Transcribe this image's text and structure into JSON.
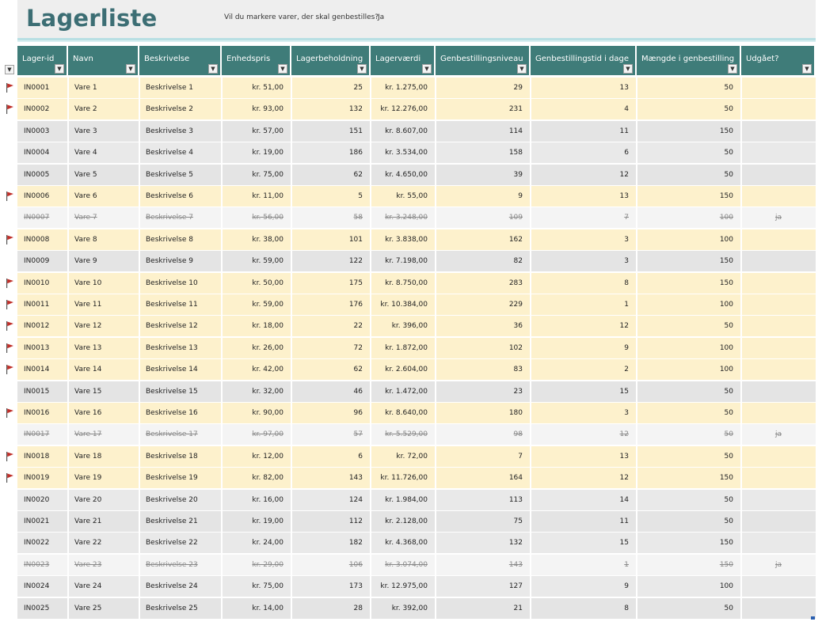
{
  "title": "Lagerliste",
  "question": "Vil du markere varer, der skal genbestilles?",
  "answer": "Ja",
  "colors": {
    "header_bg": "#3f7c79",
    "reorder_bg": "#fdf1cc",
    "flag": "#c0302a",
    "title": "#3c6e74"
  },
  "columns": [
    "Lager-id",
    "Navn",
    "Beskrivelse",
    "Enhedspris",
    "Lagerbeholdning",
    "Lagerværdi",
    "Genbestillingsniveau",
    "Genbestillingstid i dage",
    "Mængde i genbestilling",
    "Udgået?"
  ],
  "filter_icon": "dropdown-arrow-icon",
  "rows": [
    {
      "id": "IN0001",
      "name": "Vare 1",
      "desc": "Beskrivelse 1",
      "price": "kr. 51,00",
      "stock": "25",
      "value": "kr. 1.275,00",
      "level": "29",
      "days": "13",
      "qty": "50",
      "disc": "",
      "flag": true,
      "status": "reorder"
    },
    {
      "id": "IN0002",
      "name": "Vare 2",
      "desc": "Beskrivelse 2",
      "price": "kr. 93,00",
      "stock": "132",
      "value": "kr. 12.276,00",
      "level": "231",
      "days": "4",
      "qty": "50",
      "disc": "",
      "flag": true,
      "status": "reorder"
    },
    {
      "id": "IN0003",
      "name": "Vare 3",
      "desc": "Beskrivelse 3",
      "price": "kr. 57,00",
      "stock": "151",
      "value": "kr. 8.607,00",
      "level": "114",
      "days": "11",
      "qty": "150",
      "disc": "",
      "flag": false,
      "status": "normal"
    },
    {
      "id": "IN0004",
      "name": "Vare 4",
      "desc": "Beskrivelse 4",
      "price": "kr. 19,00",
      "stock": "186",
      "value": "kr. 3.534,00",
      "level": "158",
      "days": "6",
      "qty": "50",
      "disc": "",
      "flag": false,
      "status": "normal"
    },
    {
      "id": "IN0005",
      "name": "Vare 5",
      "desc": "Beskrivelse 5",
      "price": "kr. 75,00",
      "stock": "62",
      "value": "kr. 4.650,00",
      "level": "39",
      "days": "12",
      "qty": "50",
      "disc": "",
      "flag": false,
      "status": "normal"
    },
    {
      "id": "IN0006",
      "name": "Vare 6",
      "desc": "Beskrivelse 6",
      "price": "kr. 11,00",
      "stock": "5",
      "value": "kr. 55,00",
      "level": "9",
      "days": "13",
      "qty": "150",
      "disc": "",
      "flag": true,
      "status": "reorder"
    },
    {
      "id": "IN0007",
      "name": "Vare 7",
      "desc": "Beskrivelse 7",
      "price": "kr. 56,00",
      "stock": "58",
      "value": "kr. 3.248,00",
      "level": "109",
      "days": "7",
      "qty": "100",
      "disc": "ja",
      "flag": false,
      "status": "disc"
    },
    {
      "id": "IN0008",
      "name": "Vare 8",
      "desc": "Beskrivelse 8",
      "price": "kr. 38,00",
      "stock": "101",
      "value": "kr. 3.838,00",
      "level": "162",
      "days": "3",
      "qty": "100",
      "disc": "",
      "flag": true,
      "status": "reorder"
    },
    {
      "id": "IN0009",
      "name": "Vare 9",
      "desc": "Beskrivelse 9",
      "price": "kr. 59,00",
      "stock": "122",
      "value": "kr. 7.198,00",
      "level": "82",
      "days": "3",
      "qty": "150",
      "disc": "",
      "flag": false,
      "status": "normal"
    },
    {
      "id": "IN0010",
      "name": "Vare 10",
      "desc": "Beskrivelse 10",
      "price": "kr. 50,00",
      "stock": "175",
      "value": "kr. 8.750,00",
      "level": "283",
      "days": "8",
      "qty": "150",
      "disc": "",
      "flag": true,
      "status": "reorder"
    },
    {
      "id": "IN0011",
      "name": "Vare 11",
      "desc": "Beskrivelse 11",
      "price": "kr. 59,00",
      "stock": "176",
      "value": "kr. 10.384,00",
      "level": "229",
      "days": "1",
      "qty": "100",
      "disc": "",
      "flag": true,
      "status": "reorder"
    },
    {
      "id": "IN0012",
      "name": "Vare 12",
      "desc": "Beskrivelse 12",
      "price": "kr. 18,00",
      "stock": "22",
      "value": "kr. 396,00",
      "level": "36",
      "days": "12",
      "qty": "50",
      "disc": "",
      "flag": true,
      "status": "reorder"
    },
    {
      "id": "IN0013",
      "name": "Vare 13",
      "desc": "Beskrivelse 13",
      "price": "kr. 26,00",
      "stock": "72",
      "value": "kr. 1.872,00",
      "level": "102",
      "days": "9",
      "qty": "100",
      "disc": "",
      "flag": true,
      "status": "reorder"
    },
    {
      "id": "IN0014",
      "name": "Vare 14",
      "desc": "Beskrivelse 14",
      "price": "kr. 42,00",
      "stock": "62",
      "value": "kr. 2.604,00",
      "level": "83",
      "days": "2",
      "qty": "100",
      "disc": "",
      "flag": true,
      "status": "reorder"
    },
    {
      "id": "IN0015",
      "name": "Vare 15",
      "desc": "Beskrivelse 15",
      "price": "kr. 32,00",
      "stock": "46",
      "value": "kr. 1.472,00",
      "level": "23",
      "days": "15",
      "qty": "50",
      "disc": "",
      "flag": false,
      "status": "normal"
    },
    {
      "id": "IN0016",
      "name": "Vare 16",
      "desc": "Beskrivelse 16",
      "price": "kr. 90,00",
      "stock": "96",
      "value": "kr. 8.640,00",
      "level": "180",
      "days": "3",
      "qty": "50",
      "disc": "",
      "flag": true,
      "status": "reorder"
    },
    {
      "id": "IN0017",
      "name": "Vare 17",
      "desc": "Beskrivelse 17",
      "price": "kr. 97,00",
      "stock": "57",
      "value": "kr. 5.529,00",
      "level": "98",
      "days": "12",
      "qty": "50",
      "disc": "ja",
      "flag": false,
      "status": "disc"
    },
    {
      "id": "IN0018",
      "name": "Vare 18",
      "desc": "Beskrivelse 18",
      "price": "kr. 12,00",
      "stock": "6",
      "value": "kr. 72,00",
      "level": "7",
      "days": "13",
      "qty": "50",
      "disc": "",
      "flag": true,
      "status": "reorder"
    },
    {
      "id": "IN0019",
      "name": "Vare 19",
      "desc": "Beskrivelse 19",
      "price": "kr. 82,00",
      "stock": "143",
      "value": "kr. 11.726,00",
      "level": "164",
      "days": "12",
      "qty": "150",
      "disc": "",
      "flag": true,
      "status": "reorder"
    },
    {
      "id": "IN0020",
      "name": "Vare 20",
      "desc": "Beskrivelse 20",
      "price": "kr. 16,00",
      "stock": "124",
      "value": "kr. 1.984,00",
      "level": "113",
      "days": "14",
      "qty": "50",
      "disc": "",
      "flag": false,
      "status": "normal"
    },
    {
      "id": "IN0021",
      "name": "Vare 21",
      "desc": "Beskrivelse 21",
      "price": "kr. 19,00",
      "stock": "112",
      "value": "kr. 2.128,00",
      "level": "75",
      "days": "11",
      "qty": "50",
      "disc": "",
      "flag": false,
      "status": "normal"
    },
    {
      "id": "IN0022",
      "name": "Vare 22",
      "desc": "Beskrivelse 22",
      "price": "kr. 24,00",
      "stock": "182",
      "value": "kr. 4.368,00",
      "level": "132",
      "days": "15",
      "qty": "150",
      "disc": "",
      "flag": false,
      "status": "normal"
    },
    {
      "id": "IN0023",
      "name": "Vare 23",
      "desc": "Beskrivelse 23",
      "price": "kr. 29,00",
      "stock": "106",
      "value": "kr. 3.074,00",
      "level": "143",
      "days": "1",
      "qty": "150",
      "disc": "ja",
      "flag": false,
      "status": "disc"
    },
    {
      "id": "IN0024",
      "name": "Vare 24",
      "desc": "Beskrivelse 24",
      "price": "kr. 75,00",
      "stock": "173",
      "value": "kr. 12.975,00",
      "level": "127",
      "days": "9",
      "qty": "100",
      "disc": "",
      "flag": false,
      "status": "normal"
    },
    {
      "id": "IN0025",
      "name": "Vare 25",
      "desc": "Beskrivelse 25",
      "price": "kr. 14,00",
      "stock": "28",
      "value": "kr. 392,00",
      "level": "21",
      "days": "8",
      "qty": "50",
      "disc": "",
      "flag": false,
      "status": "normal"
    }
  ]
}
